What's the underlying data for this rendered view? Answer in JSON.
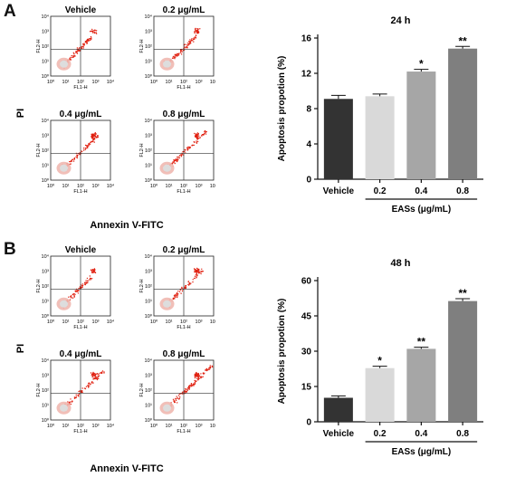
{
  "panels": [
    {
      "letter": "A",
      "flow": {
        "plots": [
          {
            "label": "Vehicle",
            "cluster_spread": 0.1
          },
          {
            "label": "0.2 μg/mL",
            "cluster_spread": 0.12
          },
          {
            "label": "0.4 μg/mL",
            "cluster_spread": 0.22
          },
          {
            "label": "0.8 μg/mL",
            "cluster_spread": 0.3
          }
        ],
        "x_axis_label": "Annexin V-FITC",
        "y_axis_label": "PI",
        "plot_x_label": "FL1-H",
        "plot_y_label": "FL2-H",
        "tick_labels": [
          "10⁰",
          "10¹",
          "10²",
          "10³",
          "10⁴"
        ]
      },
      "chart_data": {
        "type": "bar",
        "title": "24 h",
        "ylabel": "Apoptosis propotion (%)",
        "xlabel": "EASs (μg/mL)",
        "categories": [
          "Vehicle",
          "0.2",
          "0.4",
          "0.8"
        ],
        "values": [
          9.1,
          9.4,
          12.2,
          14.8
        ],
        "errors": [
          0.4,
          0.25,
          0.25,
          0.25
        ],
        "significance": [
          "",
          "",
          "*",
          "**"
        ],
        "colors": [
          "#333333",
          "#d9d9d9",
          "#a6a6a6",
          "#7f7f7f"
        ],
        "ylim": [
          0,
          16
        ],
        "yticks": [
          0,
          4,
          8,
          12,
          16
        ]
      }
    },
    {
      "letter": "B",
      "flow": {
        "plots": [
          {
            "label": "Vehicle",
            "cluster_spread": 0.1
          },
          {
            "label": "0.2 μg/mL",
            "cluster_spread": 0.24
          },
          {
            "label": "0.4 μg/mL",
            "cluster_spread": 0.32
          },
          {
            "label": "0.8 μg/mL",
            "cluster_spread": 0.42
          }
        ],
        "x_axis_label": "Annexin V-FITC",
        "y_axis_label": "PI",
        "plot_x_label": "FL1-H",
        "plot_y_label": "FL2-H",
        "tick_labels": [
          "10⁰",
          "10¹",
          "10²",
          "10³",
          "10⁴"
        ]
      },
      "chart_data": {
        "type": "bar",
        "title": "48 h",
        "ylabel": "Apoptosis propotion (%)",
        "xlabel": "EASs (μg/mL)",
        "categories": [
          "Vehicle",
          "0.2",
          "0.4",
          "0.8"
        ],
        "values": [
          10.2,
          22.8,
          31.0,
          51.3
        ],
        "errors": [
          0.8,
          0.8,
          0.7,
          1.0
        ],
        "significance": [
          "",
          "*",
          "**",
          "**"
        ],
        "colors": [
          "#333333",
          "#d9d9d9",
          "#a6a6a6",
          "#7f7f7f"
        ],
        "ylim": [
          0,
          60
        ],
        "yticks": [
          0,
          15,
          30,
          45,
          60
        ]
      }
    }
  ],
  "dot_color": "#e02010"
}
